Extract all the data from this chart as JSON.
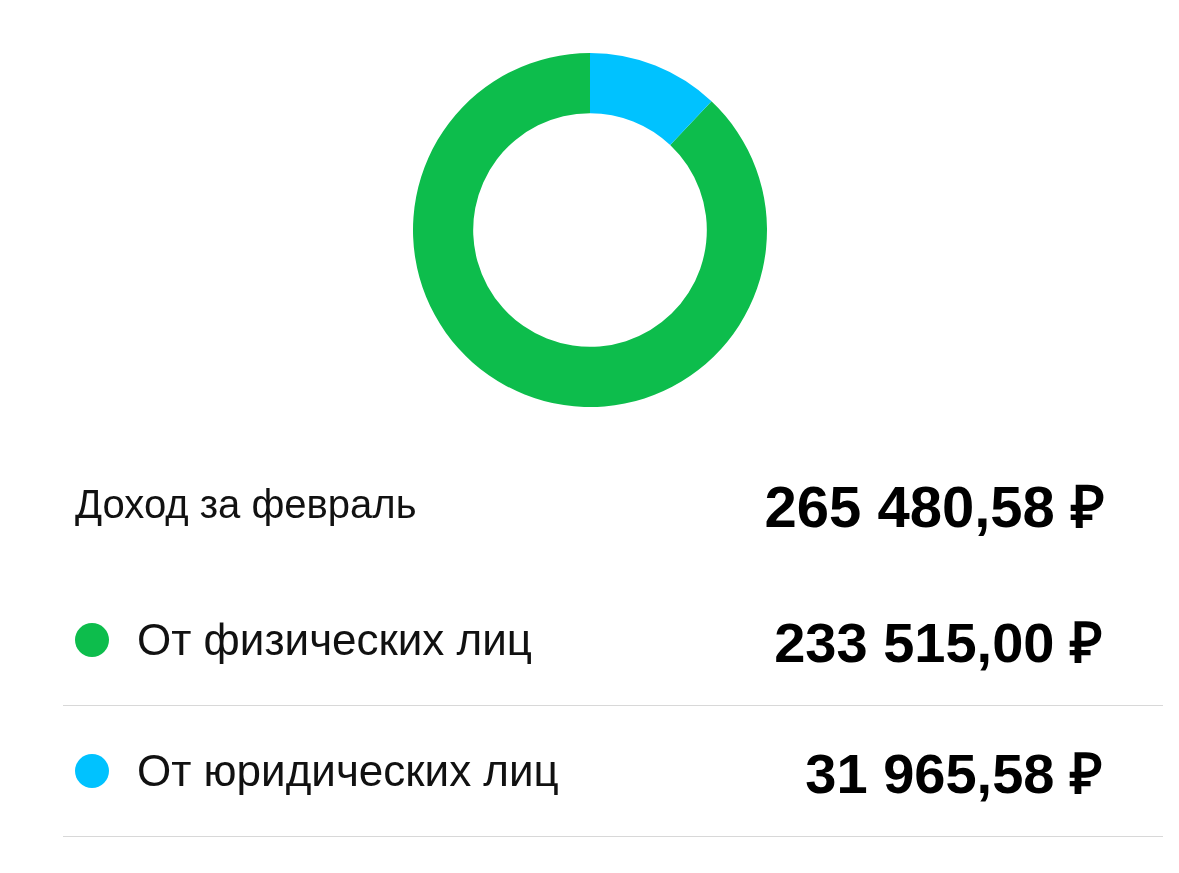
{
  "chart_data": {
    "type": "donut",
    "title": "Доход за февраль",
    "annotations": [
      "265 480,58 ₽"
    ],
    "categories": [
      "От физических лиц",
      "От юридических лиц"
    ],
    "values": [
      233515.0,
      31965.58
    ],
    "colors": [
      "#0dbd4c",
      "#00c2ff"
    ],
    "value_labels": [
      "233 515,00 ₽",
      "31 965,58 ₽"
    ],
    "legend": "bottom"
  }
}
